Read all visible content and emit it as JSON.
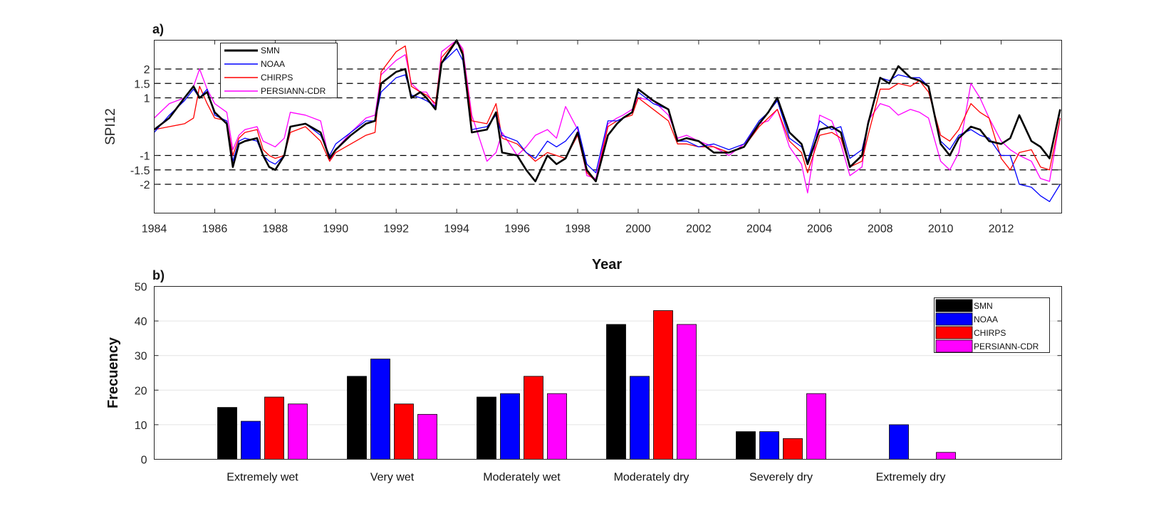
{
  "chart_data": [
    {
      "panel": "a)",
      "type": "line",
      "ylabel": "SPI12",
      "xlabel": "Year",
      "xlim": [
        1984,
        2014
      ],
      "ylim": [
        -3.0,
        3.0
      ],
      "xticks": [
        "1984",
        "1986",
        "1988",
        "1990",
        "1992",
        "1994",
        "1996",
        "1998",
        "2000",
        "2002",
        "2004",
        "2006",
        "2008",
        "2010",
        "2012"
      ],
      "xtick_values": [
        1984,
        1986,
        1988,
        1990,
        1992,
        1994,
        1996,
        1998,
        2000,
        2002,
        2004,
        2006,
        2008,
        2010,
        2012
      ],
      "yticks": [
        "2",
        "1.5",
        "1",
        "-1",
        "-1.5",
        "-2"
      ],
      "ytick_values": [
        2,
        1.5,
        1,
        -1,
        -1.5,
        -2
      ],
      "reference_lines": [
        2,
        1.5,
        1,
        -1,
        -1.5,
        -2
      ],
      "legend": [
        "SMN",
        "NOAA",
        "CHIRPS",
        "PERSIANN-CDR"
      ],
      "colors": [
        "#000000",
        "#0000ff",
        "#ff0000",
        "#ff00ff"
      ],
      "x": [
        1984.0,
        1984.5,
        1985.0,
        1985.3,
        1985.5,
        1985.75,
        1986.0,
        1986.4,
        1986.6,
        1986.8,
        1987.0,
        1987.4,
        1987.6,
        1987.8,
        1988.0,
        1988.3,
        1988.5,
        1989.0,
        1989.5,
        1989.8,
        1990.0,
        1990.5,
        1991.0,
        1991.3,
        1991.5,
        1992.0,
        1992.3,
        1992.5,
        1992.8,
        1993.0,
        1993.3,
        1993.5,
        1994.0,
        1994.2,
        1994.5,
        1995.0,
        1995.3,
        1995.5,
        1996.0,
        1996.3,
        1996.6,
        1997.0,
        1997.3,
        1997.6,
        1998.0,
        1998.3,
        1998.6,
        1999.0,
        1999.3,
        1999.5,
        1999.8,
        2000.0,
        2000.5,
        2001.0,
        2001.3,
        2001.6,
        2002.0,
        2002.5,
        2003.0,
        2003.5,
        2004.0,
        2004.3,
        2004.6,
        2005.0,
        2005.4,
        2005.6,
        2006.0,
        2006.4,
        2006.7,
        2007.0,
        2007.4,
        2007.6,
        2008.0,
        2008.3,
        2008.6,
        2009.0,
        2009.3,
        2009.6,
        2010.0,
        2010.3,
        2010.6,
        2011.0,
        2011.3,
        2011.6,
        2012.0,
        2012.3,
        2012.6,
        2013.0,
        2013.3,
        2013.6,
        2013.95
      ],
      "series": [
        {
          "name": "SMN",
          "values": [
            -0.1,
            0.3,
            1.0,
            1.4,
            1.0,
            1.2,
            0.5,
            0.1,
            -1.4,
            -0.6,
            -0.5,
            -0.4,
            -1.0,
            -1.4,
            -1.5,
            -1.0,
            0.0,
            0.1,
            -0.2,
            -1.1,
            -0.8,
            -0.3,
            0.1,
            0.2,
            1.5,
            1.9,
            2.0,
            1.0,
            1.2,
            1.0,
            0.6,
            2.2,
            3.0,
            2.5,
            -0.2,
            -0.1,
            0.5,
            -0.9,
            -1.0,
            -1.5,
            -1.9,
            -1.0,
            -1.3,
            -1.1,
            -0.2,
            -1.5,
            -1.9,
            -0.3,
            0.1,
            0.3,
            0.5,
            1.3,
            0.9,
            0.6,
            -0.5,
            -0.4,
            -0.5,
            -0.9,
            -0.9,
            -0.7,
            0.1,
            0.5,
            1.0,
            -0.2,
            -0.6,
            -1.3,
            -0.1,
            0.0,
            -0.2,
            -1.4,
            -1.0,
            0.1,
            1.7,
            1.5,
            2.1,
            1.7,
            1.6,
            1.4,
            -0.6,
            -1.0,
            -0.4,
            0.0,
            -0.1,
            -0.5,
            -0.6,
            -0.4,
            0.4,
            -0.5,
            -0.7,
            -1.1,
            0.6
          ]
        },
        {
          "name": "NOAA",
          "values": [
            -0.2,
            0.4,
            0.9,
            1.3,
            1.0,
            1.3,
            0.4,
            0.2,
            -1.2,
            -0.5,
            -0.4,
            -0.5,
            -1.0,
            -1.2,
            -1.3,
            -1.0,
            0.0,
            0.1,
            -0.3,
            -1.0,
            -0.6,
            -0.2,
            0.2,
            0.2,
            1.2,
            1.7,
            1.8,
            1.1,
            1.0,
            0.9,
            0.7,
            2.2,
            2.7,
            2.3,
            -0.1,
            0.0,
            0.4,
            -0.3,
            -0.5,
            -0.9,
            -1.1,
            -0.5,
            -0.7,
            -0.5,
            0.0,
            -1.3,
            -1.6,
            0.2,
            0.2,
            0.3,
            0.5,
            1.2,
            0.8,
            0.6,
            -0.5,
            -0.5,
            -0.7,
            -0.6,
            -0.8,
            -0.6,
            0.2,
            0.5,
            0.9,
            -0.4,
            -0.7,
            -1.2,
            0.2,
            -0.1,
            0.0,
            -1.1,
            -0.8,
            0.1,
            1.7,
            1.6,
            1.8,
            1.7,
            1.7,
            1.4,
            -0.5,
            -0.8,
            -0.3,
            -0.1,
            -0.3,
            -0.4,
            -1.0,
            -1.0,
            -2.0,
            -2.1,
            -2.4,
            -2.6,
            -2.0
          ]
        },
        {
          "name": "CHIRPS",
          "values": [
            -0.1,
            0.0,
            0.1,
            0.3,
            1.4,
            0.8,
            0.3,
            0.2,
            -1.0,
            -0.4,
            -0.2,
            -0.1,
            -0.8,
            -1.0,
            -1.1,
            -1.0,
            -0.2,
            0.0,
            -0.5,
            -1.2,
            -0.9,
            -0.6,
            -0.3,
            -0.2,
            1.9,
            2.6,
            2.8,
            1.4,
            1.2,
            1.1,
            0.8,
            2.4,
            3.0,
            2.6,
            0.2,
            0.1,
            0.8,
            -0.4,
            -0.6,
            -0.9,
            -1.2,
            -0.9,
            -1.0,
            -1.1,
            -0.3,
            -1.6,
            -1.9,
            0.0,
            0.2,
            0.3,
            0.4,
            1.0,
            0.6,
            0.2,
            -0.6,
            -0.6,
            -0.7,
            -0.7,
            -0.9,
            -0.7,
            0.0,
            0.3,
            0.6,
            -0.5,
            -0.9,
            -1.6,
            -0.3,
            -0.2,
            -0.4,
            -1.4,
            -1.2,
            -0.3,
            1.3,
            1.3,
            1.5,
            1.4,
            1.6,
            1.2,
            -0.3,
            -0.5,
            -0.1,
            0.8,
            0.5,
            0.3,
            -1.1,
            -1.5,
            -0.9,
            -0.8,
            -1.4,
            -1.5,
            0.3
          ]
        },
        {
          "name": "PERSIANN-CDR",
          "values": [
            0.3,
            0.8,
            1.0,
            1.4,
            2.0,
            1.3,
            0.8,
            0.5,
            -0.8,
            -0.3,
            -0.1,
            0.0,
            -0.5,
            -0.6,
            -0.7,
            -0.4,
            0.5,
            0.4,
            0.2,
            -1.2,
            -0.8,
            -0.2,
            0.3,
            0.4,
            1.8,
            2.3,
            2.5,
            1.5,
            1.2,
            1.2,
            0.7,
            2.6,
            3.0,
            2.7,
            0.4,
            -1.2,
            -0.9,
            -0.2,
            -1.0,
            -0.7,
            -0.3,
            -0.1,
            -0.4,
            0.7,
            -0.1,
            -1.7,
            -1.8,
            0.1,
            0.3,
            0.4,
            0.6,
            1.0,
            0.9,
            0.4,
            -0.4,
            -0.3,
            -0.5,
            -0.7,
            -1.0,
            -0.6,
            0.1,
            0.2,
            0.6,
            -0.7,
            -1.3,
            -2.3,
            0.4,
            0.2,
            -0.6,
            -1.7,
            -1.4,
            0.2,
            0.8,
            0.7,
            0.4,
            0.6,
            0.5,
            0.3,
            -1.2,
            -1.5,
            -0.9,
            1.5,
            1.0,
            0.3,
            -0.5,
            -0.8,
            -1.0,
            -1.2,
            -1.8,
            -1.9,
            0.3
          ]
        }
      ]
    },
    {
      "panel": "b)",
      "type": "bar",
      "ylabel": "Frecuency",
      "ylim": [
        0,
        50
      ],
      "yticks": [
        "0",
        "10",
        "20",
        "30",
        "40",
        "50"
      ],
      "ytick_values": [
        0,
        10,
        20,
        30,
        40,
        50
      ],
      "categories": [
        "Extremely wet",
        "Very wet",
        "Moderately wet",
        "Moderately dry",
        "Severely dry",
        "Extremely dry"
      ],
      "legend": [
        "SMN",
        "NOAA",
        "CHIRPS",
        "PERSIANN-CDR"
      ],
      "colors": [
        "#000000",
        "#0000ff",
        "#ff0000",
        "#ff00ff"
      ],
      "series": [
        {
          "name": "SMN",
          "values": [
            15,
            24,
            18,
            39,
            8,
            0
          ]
        },
        {
          "name": "NOAA",
          "values": [
            11,
            29,
            19,
            24,
            8,
            10
          ]
        },
        {
          "name": "CHIRPS",
          "values": [
            18,
            16,
            24,
            43,
            6,
            0
          ]
        },
        {
          "name": "PERSIANN-CDR",
          "values": [
            16,
            13,
            19,
            39,
            19,
            2
          ]
        }
      ]
    }
  ]
}
